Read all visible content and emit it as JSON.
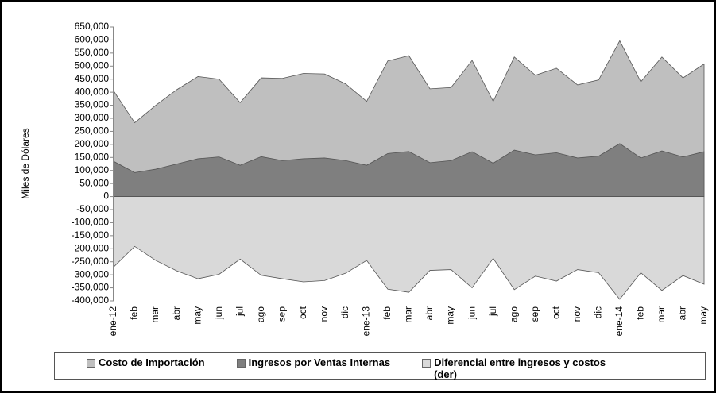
{
  "chart_data": {
    "type": "area",
    "y_label": "Miles de Dólares",
    "categories": [
      "ene-12",
      "feb",
      "mar",
      "abr",
      "may",
      "jun",
      "jul",
      "ago",
      "sep",
      "oct",
      "nov",
      "dic",
      "ene-13",
      "feb",
      "mar",
      "abr",
      "may",
      "jun",
      "jul",
      "ago",
      "sep",
      "oct",
      "nov",
      "dic",
      "ene-14",
      "feb",
      "mar",
      "abr",
      "may"
    ],
    "series": [
      {
        "name": "Costo de Importación",
        "color": "#bfbfbf",
        "values": [
          405000,
          283000,
          350000,
          410000,
          460000,
          450000,
          360000,
          455000,
          453000,
          472000,
          470000,
          432000,
          365000,
          520000,
          540000,
          413000,
          418000,
          522000,
          365000,
          535000,
          465000,
          492000,
          428000,
          447000,
          597000,
          440000,
          535000,
          455000,
          508000
        ]
      },
      {
        "name": "Ingresos por Ventas Internas",
        "color": "#7f7f7f",
        "values": [
          135000,
          92000,
          105000,
          125000,
          145000,
          152000,
          120000,
          153000,
          138000,
          145000,
          148000,
          138000,
          120000,
          165000,
          173000,
          130000,
          138000,
          172000,
          128000,
          178000,
          160000,
          168000,
          148000,
          155000,
          203000,
          148000,
          175000,
          152000,
          172000
        ]
      },
      {
        "name": "Diferencial entre ingresos y costos (der)",
        "color": "#d9d9d9",
        "values": [
          -270000,
          -191000,
          -245000,
          -285000,
          -315000,
          -298000,
          -240000,
          -302000,
          -315000,
          -327000,
          -322000,
          -294000,
          -245000,
          -355000,
          -367000,
          -283000,
          -280000,
          -350000,
          -237000,
          -357000,
          -305000,
          -324000,
          -280000,
          -292000,
          -394000,
          -292000,
          -360000,
          -303000,
          -336000
        ]
      }
    ],
    "ylim": [
      -400000,
      650000
    ],
    "yticks": [
      {
        "value": -400000,
        "label": "-400,000"
      },
      {
        "value": -350000,
        "label": "-350,000"
      },
      {
        "value": -300000,
        "label": "-300,000"
      },
      {
        "value": -250000,
        "label": "-250,000"
      },
      {
        "value": -200000,
        "label": "-200,000"
      },
      {
        "value": -150000,
        "label": "-150,000"
      },
      {
        "value": -100000,
        "label": "-100,000"
      },
      {
        "value": -50000,
        "label": "-50,000"
      },
      0,
      {
        "value": 50000,
        "label": "50,000"
      },
      {
        "value": 100000,
        "label": "100,000"
      },
      {
        "value": 150000,
        "label": "150,000"
      },
      {
        "value": 200000,
        "label": "200,000"
      },
      {
        "value": 250000,
        "label": "250,000"
      },
      {
        "value": 300000,
        "label": "300,000"
      },
      {
        "value": 350000,
        "label": "350,000"
      },
      {
        "value": 400000,
        "label": "400,000"
      },
      {
        "value": 450000,
        "label": "450,000"
      },
      {
        "value": 500000,
        "label": "500,000"
      },
      {
        "value": 550000,
        "label": "550,000"
      },
      {
        "value": 600000,
        "label": "600,000"
      },
      {
        "value": 650000,
        "label": "650,000"
      }
    ],
    "grid": false,
    "legend": "bottom"
  }
}
